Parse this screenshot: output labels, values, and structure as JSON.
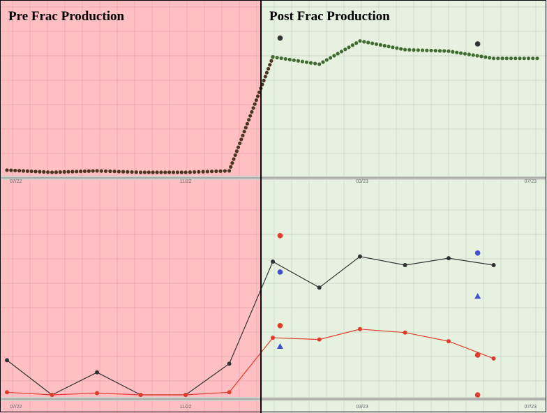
{
  "chart_data": {
    "type": "line",
    "panels": [
      {
        "name": "pre",
        "title": "Pre Frac Production",
        "background": "#ffbfc3"
      },
      {
        "name": "post",
        "title": "Post Frac Production",
        "background": "#e7f1e0"
      }
    ],
    "x_range": [
      "2022-07-01",
      "2023-07-01"
    ],
    "frac_date": "2022-12-31",
    "x_ticks": [
      "07/22",
      "11/22",
      "03/23",
      "07/23"
    ],
    "grid": true,
    "colors": {
      "brown": "#4a3520",
      "green": "#3f6b30",
      "black": "#333333",
      "red": "#e03c2c",
      "blue": "#3f4fd0",
      "divider": "#000000"
    },
    "charts": [
      {
        "name": "top",
        "y_range": [
          0,
          100
        ],
        "series": [
          {
            "name": "pre-curve",
            "color": "brown",
            "points": [
              [
                "2022-07-01",
                2
              ],
              [
                "2022-08-01",
                0.5
              ],
              [
                "2022-09-01",
                1.5
              ],
              [
                "2022-10-01",
                0.5
              ],
              [
                "2022-11-01",
                0.5
              ],
              [
                "2022-12-01",
                1.5
              ],
              [
                "2022-12-31",
                80
              ]
            ]
          },
          {
            "name": "post-curve",
            "color": "green",
            "points": [
              [
                "2022-12-31",
                80
              ],
              [
                "2023-02-01",
                75
              ],
              [
                "2023-03-01",
                91
              ],
              [
                "2023-04-01",
                85
              ],
              [
                "2023-05-01",
                84
              ],
              [
                "2023-06-01",
                79
              ],
              [
                "2023-07-01",
                79
              ]
            ]
          },
          {
            "name": "outliers",
            "color": "black",
            "scatter": true,
            "points": [
              [
                "2023-01-05",
                93
              ],
              [
                "2023-05-21",
                89
              ]
            ]
          }
        ]
      },
      {
        "name": "bottom",
        "y_range": [
          0,
          100
        ],
        "series": [
          {
            "name": "black-line",
            "color": "black",
            "markers": true,
            "points": [
              [
                "2022-07-01",
                20
              ],
              [
                "2022-08-01",
                0
              ],
              [
                "2022-09-01",
                13
              ],
              [
                "2022-10-01",
                0
              ],
              [
                "2022-11-01",
                0
              ],
              [
                "2022-12-01",
                18
              ],
              [
                "2022-12-31",
                77
              ],
              [
                "2023-02-01",
                62
              ],
              [
                "2023-03-01",
                80
              ],
              [
                "2023-04-01",
                75
              ],
              [
                "2023-05-01",
                79
              ],
              [
                "2023-06-01",
                75
              ]
            ]
          },
          {
            "name": "red-line",
            "color": "red",
            "markers": true,
            "points": [
              [
                "2022-07-01",
                1.5
              ],
              [
                "2022-08-01",
                0
              ],
              [
                "2022-09-01",
                1
              ],
              [
                "2022-10-01",
                0
              ],
              [
                "2022-11-01",
                0
              ],
              [
                "2022-12-01",
                1.5
              ],
              [
                "2022-12-31",
                33
              ],
              [
                "2023-02-01",
                32
              ],
              [
                "2023-03-01",
                38
              ],
              [
                "2023-04-01",
                36
              ],
              [
                "2023-05-01",
                31
              ],
              [
                "2023-06-01",
                21
              ]
            ]
          },
          {
            "name": "red-dots",
            "color": "red",
            "scatter": true,
            "points": [
              [
                "2023-01-05",
                92
              ],
              [
                "2023-01-05",
                40
              ],
              [
                "2023-05-21",
                23
              ],
              [
                "2023-05-21",
                0
              ]
            ]
          },
          {
            "name": "blue-dots",
            "color": "blue",
            "scatter": true,
            "points": [
              [
                "2023-01-05",
                71
              ],
              [
                "2023-05-21",
                82
              ]
            ]
          },
          {
            "name": "blue-triangles",
            "color": "blue",
            "scatter": true,
            "marker": "triangle",
            "points": [
              [
                "2023-01-05",
                28
              ],
              [
                "2023-05-21",
                57
              ]
            ]
          }
        ]
      }
    ]
  }
}
